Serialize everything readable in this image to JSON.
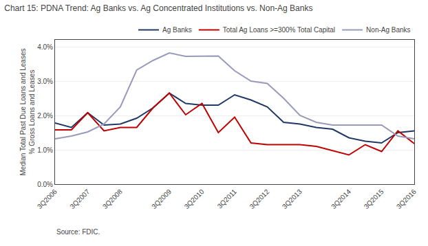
{
  "chart_data": {
    "type": "line",
    "title": "Chart 15: PDNA Trend: Ag Banks vs. Ag Concentrated Institutions vs. Non-Ag Banks",
    "ylabel": [
      "Median Total Past Due Loans and Leases",
      "% Gross Loans and Leases"
    ],
    "annotations": [
      "Source: FDIC."
    ],
    "categories": [
      "3Q2006",
      null,
      "3Q2007",
      null,
      "3Q2008",
      null,
      null,
      "3Q2009",
      null,
      "3Q2010",
      null,
      "3Q2011",
      null,
      "3Q2012",
      null,
      "3Q2013",
      null,
      null,
      "3Q2014",
      null,
      "3Q2015",
      null,
      "3Q2016"
    ],
    "series": [
      {
        "name": "Ag Banks",
        "color": "#1f3864",
        "values": [
          1.78,
          1.65,
          2.08,
          1.72,
          1.75,
          1.92,
          2.22,
          2.65,
          2.35,
          2.3,
          2.3,
          2.6,
          2.45,
          2.25,
          1.8,
          1.75,
          1.65,
          1.6,
          1.35,
          1.25,
          1.2,
          1.5,
          1.55
        ]
      },
      {
        "name": "Total Ag Loans >=300% Total Capital",
        "color": "#c00000",
        "values": [
          1.58,
          1.58,
          2.08,
          1.55,
          1.65,
          1.65,
          2.22,
          2.65,
          2.02,
          2.35,
          1.5,
          1.95,
          1.2,
          1.15,
          1.15,
          1.15,
          1.1,
          0.97,
          0.85,
          1.15,
          0.95,
          1.55,
          1.18
        ]
      },
      {
        "name": "Non-Ag Banks",
        "color": "#9999bb",
        "values": [
          1.32,
          1.4,
          1.52,
          1.75,
          2.25,
          3.32,
          3.6,
          3.82,
          3.72,
          3.73,
          3.73,
          3.3,
          3.0,
          2.93,
          2.5,
          2.0,
          1.8,
          1.72,
          1.72,
          1.72,
          1.72,
          1.4,
          1.32
        ]
      }
    ],
    "ylim": [
      0.0,
      4.2
    ],
    "yticks": [
      {
        "value": 0.0,
        "label": "0.0%"
      },
      {
        "value": 1.0,
        "label": "1.0%"
      },
      {
        "value": 2.0,
        "label": "2.0%"
      },
      {
        "value": 3.0,
        "label": "3.0%"
      },
      {
        "value": 4.0,
        "label": "4.0%"
      }
    ],
    "grid": true,
    "legend": "upper right"
  }
}
